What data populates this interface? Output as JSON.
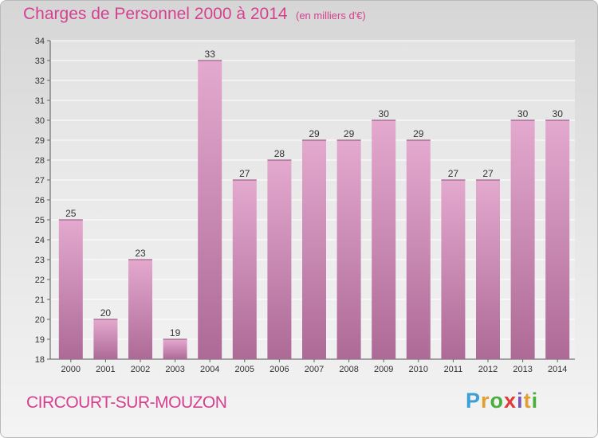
{
  "header": {
    "title": "Charges de Personnel 2000 à 2014",
    "subtitle": "(en milliers d'€)"
  },
  "footer": {
    "commune": "CIRCOURT-SUR-MOUZON",
    "logo_letters": [
      "P",
      "r",
      "o",
      "x",
      "i",
      "t",
      "i"
    ],
    "logo_colors": [
      "#3aa0d5",
      "#e0a030",
      "#4aae3d",
      "#e03a3a",
      "#7a55b5",
      "#e0a030",
      "#4aae3d"
    ]
  },
  "chart_data": {
    "type": "bar",
    "categories": [
      "2000",
      "2001",
      "2002",
      "2003",
      "2004",
      "2005",
      "2006",
      "2007",
      "2008",
      "2009",
      "2010",
      "2011",
      "2012",
      "2013",
      "2014"
    ],
    "values": [
      25,
      20,
      23,
      19,
      33,
      27,
      28,
      29,
      29,
      30,
      29,
      27,
      27,
      30,
      30
    ],
    "ylim": [
      18,
      34
    ],
    "yticks": [
      18,
      19,
      20,
      21,
      22,
      23,
      24,
      25,
      26,
      27,
      28,
      29,
      30,
      31,
      32,
      33,
      34
    ],
    "grid": true,
    "bar_color_top": "#e4a9cf",
    "bar_color_bottom": "#ad6a96"
  }
}
